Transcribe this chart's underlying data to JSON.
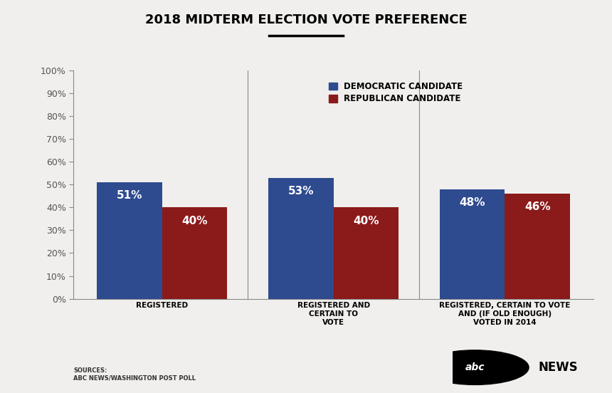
{
  "title": "2018 MIDTERM ELECTION VOTE PREFERENCE",
  "categories": [
    "REGISTERED",
    "REGISTERED AND\nCERTAIN TO\nVOTE",
    "REGISTERED, CERTAIN TO VOTE\nAND (IF OLD ENOUGH)\nVOTED IN 2014"
  ],
  "democratic_values": [
    51,
    53,
    48
  ],
  "republican_values": [
    40,
    40,
    46
  ],
  "democratic_color": "#2E4B8F",
  "republican_color": "#8B1A1A",
  "bar_width": 0.38,
  "ylim": [
    0,
    100
  ],
  "yticks": [
    0,
    10,
    20,
    30,
    40,
    50,
    60,
    70,
    80,
    90,
    100
  ],
  "ytick_labels": [
    "0%",
    "10%",
    "20%",
    "30%",
    "40%",
    "50%",
    "60%",
    "70%",
    "80%",
    "90%",
    "100%"
  ],
  "background_color": "#F0EFED",
  "legend_labels": [
    "DEMOCRATIC CANDIDATE",
    "REPUBLICAN CANDIDATE"
  ],
  "source_text": "SOURCES:\nABC NEWS/WASHINGTON POST POLL",
  "value_fontsize": 11,
  "title_fontsize": 13,
  "label_fontsize": 7.5,
  "tick_fontsize": 9,
  "legend_fontsize": 8.5
}
